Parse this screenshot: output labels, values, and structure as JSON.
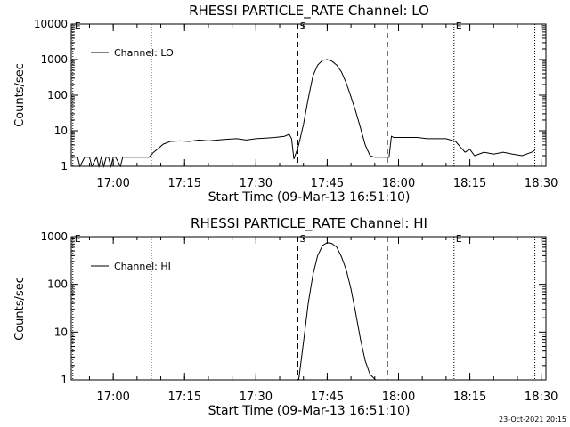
{
  "footer": {
    "timestamp": "23-Oct-2021 20:15"
  },
  "chart_data": [
    {
      "type": "line",
      "title": "RHESSI PARTICLE_RATE Channel: LO",
      "xlabel": "Start Time (09-Mar-13 16:51:10)",
      "ylabel": "Counts/sec",
      "yscale": "log",
      "xlim": [
        "16:51:10",
        "18:31:00"
      ],
      "ylim": [
        1,
        10000
      ],
      "x_ticks": [
        "17:00",
        "17:15",
        "17:30",
        "17:45",
        "18:00",
        "18:15",
        "18:30"
      ],
      "y_ticks": [
        "1",
        "10",
        "100",
        "1000",
        "10000"
      ],
      "legend": {
        "placement": "top-left",
        "entries": [
          "Channel: LO"
        ]
      },
      "markers": [
        {
          "label": "E",
          "time": "16:51:30",
          "style": "dotted"
        },
        {
          "label": "",
          "time": "17:08:00",
          "style": "dotted"
        },
        {
          "label": "S",
          "time": "17:38:50",
          "style": "dashed"
        },
        {
          "label": "",
          "time": "17:57:40",
          "style": "dashed"
        },
        {
          "label": "E",
          "time": "18:11:40",
          "style": "dotted"
        },
        {
          "label": "",
          "time": "18:28:40",
          "style": "dotted"
        }
      ],
      "series": [
        {
          "name": "Channel: LO",
          "x": [
            "16:51:10",
            "16:52:30",
            "16:53:00",
            "16:54:00",
            "16:55:00",
            "16:55:30",
            "16:56:30",
            "16:57:00",
            "16:57:30",
            "16:58:00",
            "16:58:30",
            "16:59:00",
            "16:59:30",
            "17:00:00",
            "17:00:30",
            "17:01:30",
            "17:02:00",
            "17:03:00",
            "17:04:00",
            "17:06:00",
            "17:07:30",
            "17:08:30",
            "17:09:30",
            "17:10:30",
            "17:12:00",
            "17:14:00",
            "17:16:00",
            "17:18:00",
            "17:20:00",
            "17:22:00",
            "17:24:00",
            "17:26:00",
            "17:28:00",
            "17:30:00",
            "17:32:00",
            "17:34:00",
            "17:36:00",
            "17:37:00",
            "17:37:30",
            "17:38:00",
            "17:38:30",
            "17:39:00",
            "17:40:00",
            "17:41:00",
            "17:42:00",
            "17:43:00",
            "17:44:00",
            "17:45:00",
            "17:46:00",
            "17:47:00",
            "17:48:00",
            "17:49:00",
            "17:50:00",
            "17:51:00",
            "17:52:00",
            "17:53:00",
            "17:54:00",
            "17:55:00",
            "17:56:00",
            "17:57:00",
            "17:58:00",
            "17:58:30",
            "17:59:00",
            "18:00:00",
            "18:02:00",
            "18:04:00",
            "18:06:00",
            "18:08:00",
            "18:10:00",
            "18:12:00",
            "18:13:00",
            "18:14:00",
            "18:15:00",
            "18:16:00",
            "18:18:00",
            "18:20:00",
            "18:22:00",
            "18:24:00",
            "18:26:00",
            "18:28:00",
            "18:28:40"
          ],
          "values": [
            1.8,
            1.8,
            1,
            1.8,
            1.8,
            1,
            1.8,
            1,
            1.8,
            1,
            1.8,
            1.8,
            1,
            1.8,
            1.8,
            1,
            1.8,
            1.8,
            1.8,
            1.8,
            1.8,
            2.5,
            3.2,
            4.2,
            5,
            5.2,
            5,
            5.5,
            5.2,
            5.5,
            5.8,
            6,
            5.5,
            6,
            6.2,
            6.5,
            7,
            8,
            6,
            1.6,
            2.5,
            4,
            15,
            80,
            350,
            700,
            950,
            1000,
            900,
            700,
            450,
            220,
            90,
            35,
            12,
            4,
            2,
            1.8,
            1.8,
            1.8,
            1.8,
            7,
            6.5,
            6.5,
            6.5,
            6.5,
            6,
            6,
            6,
            5,
            3.5,
            2.5,
            3,
            2,
            2.5,
            2.2,
            2.5,
            2.2,
            2,
            2.5,
            2.8
          ]
        }
      ]
    },
    {
      "type": "line",
      "title": "RHESSI PARTICLE_RATE Channel: HI",
      "xlabel": "Start Time (09-Mar-13 16:51:10)",
      "ylabel": "Counts/sec",
      "yscale": "log",
      "xlim": [
        "16:51:10",
        "18:31:00"
      ],
      "ylim": [
        1,
        1000
      ],
      "x_ticks": [
        "17:00",
        "17:15",
        "17:30",
        "17:45",
        "18:00",
        "18:15",
        "18:30"
      ],
      "y_ticks": [
        "1",
        "10",
        "100",
        "1000"
      ],
      "legend": {
        "placement": "top-left",
        "entries": [
          "Channel: HI"
        ]
      },
      "markers": [
        {
          "label": "E",
          "time": "16:51:30",
          "style": "dotted"
        },
        {
          "label": "",
          "time": "17:08:00",
          "style": "dotted"
        },
        {
          "label": "S",
          "time": "17:38:50",
          "style": "dashed"
        },
        {
          "label": "",
          "time": "17:57:40",
          "style": "dashed"
        },
        {
          "label": "E",
          "time": "18:11:40",
          "style": "dotted"
        },
        {
          "label": "",
          "time": "18:28:40",
          "style": "dotted"
        }
      ],
      "series": [
        {
          "name": "Channel: HI",
          "x": [
            "17:39:00",
            "17:40:00",
            "17:41:00",
            "17:42:00",
            "17:43:00",
            "17:44:00",
            "17:45:00",
            "17:46:00",
            "17:47:00",
            "17:48:00",
            "17:49:00",
            "17:50:00",
            "17:51:00",
            "17:52:00",
            "17:53:00",
            "17:54:00",
            "17:55:10"
          ],
          "values": [
            1,
            6,
            40,
            160,
            400,
            650,
            750,
            720,
            600,
            380,
            200,
            80,
            25,
            7,
            2.5,
            1.3,
            1
          ]
        }
      ]
    }
  ]
}
